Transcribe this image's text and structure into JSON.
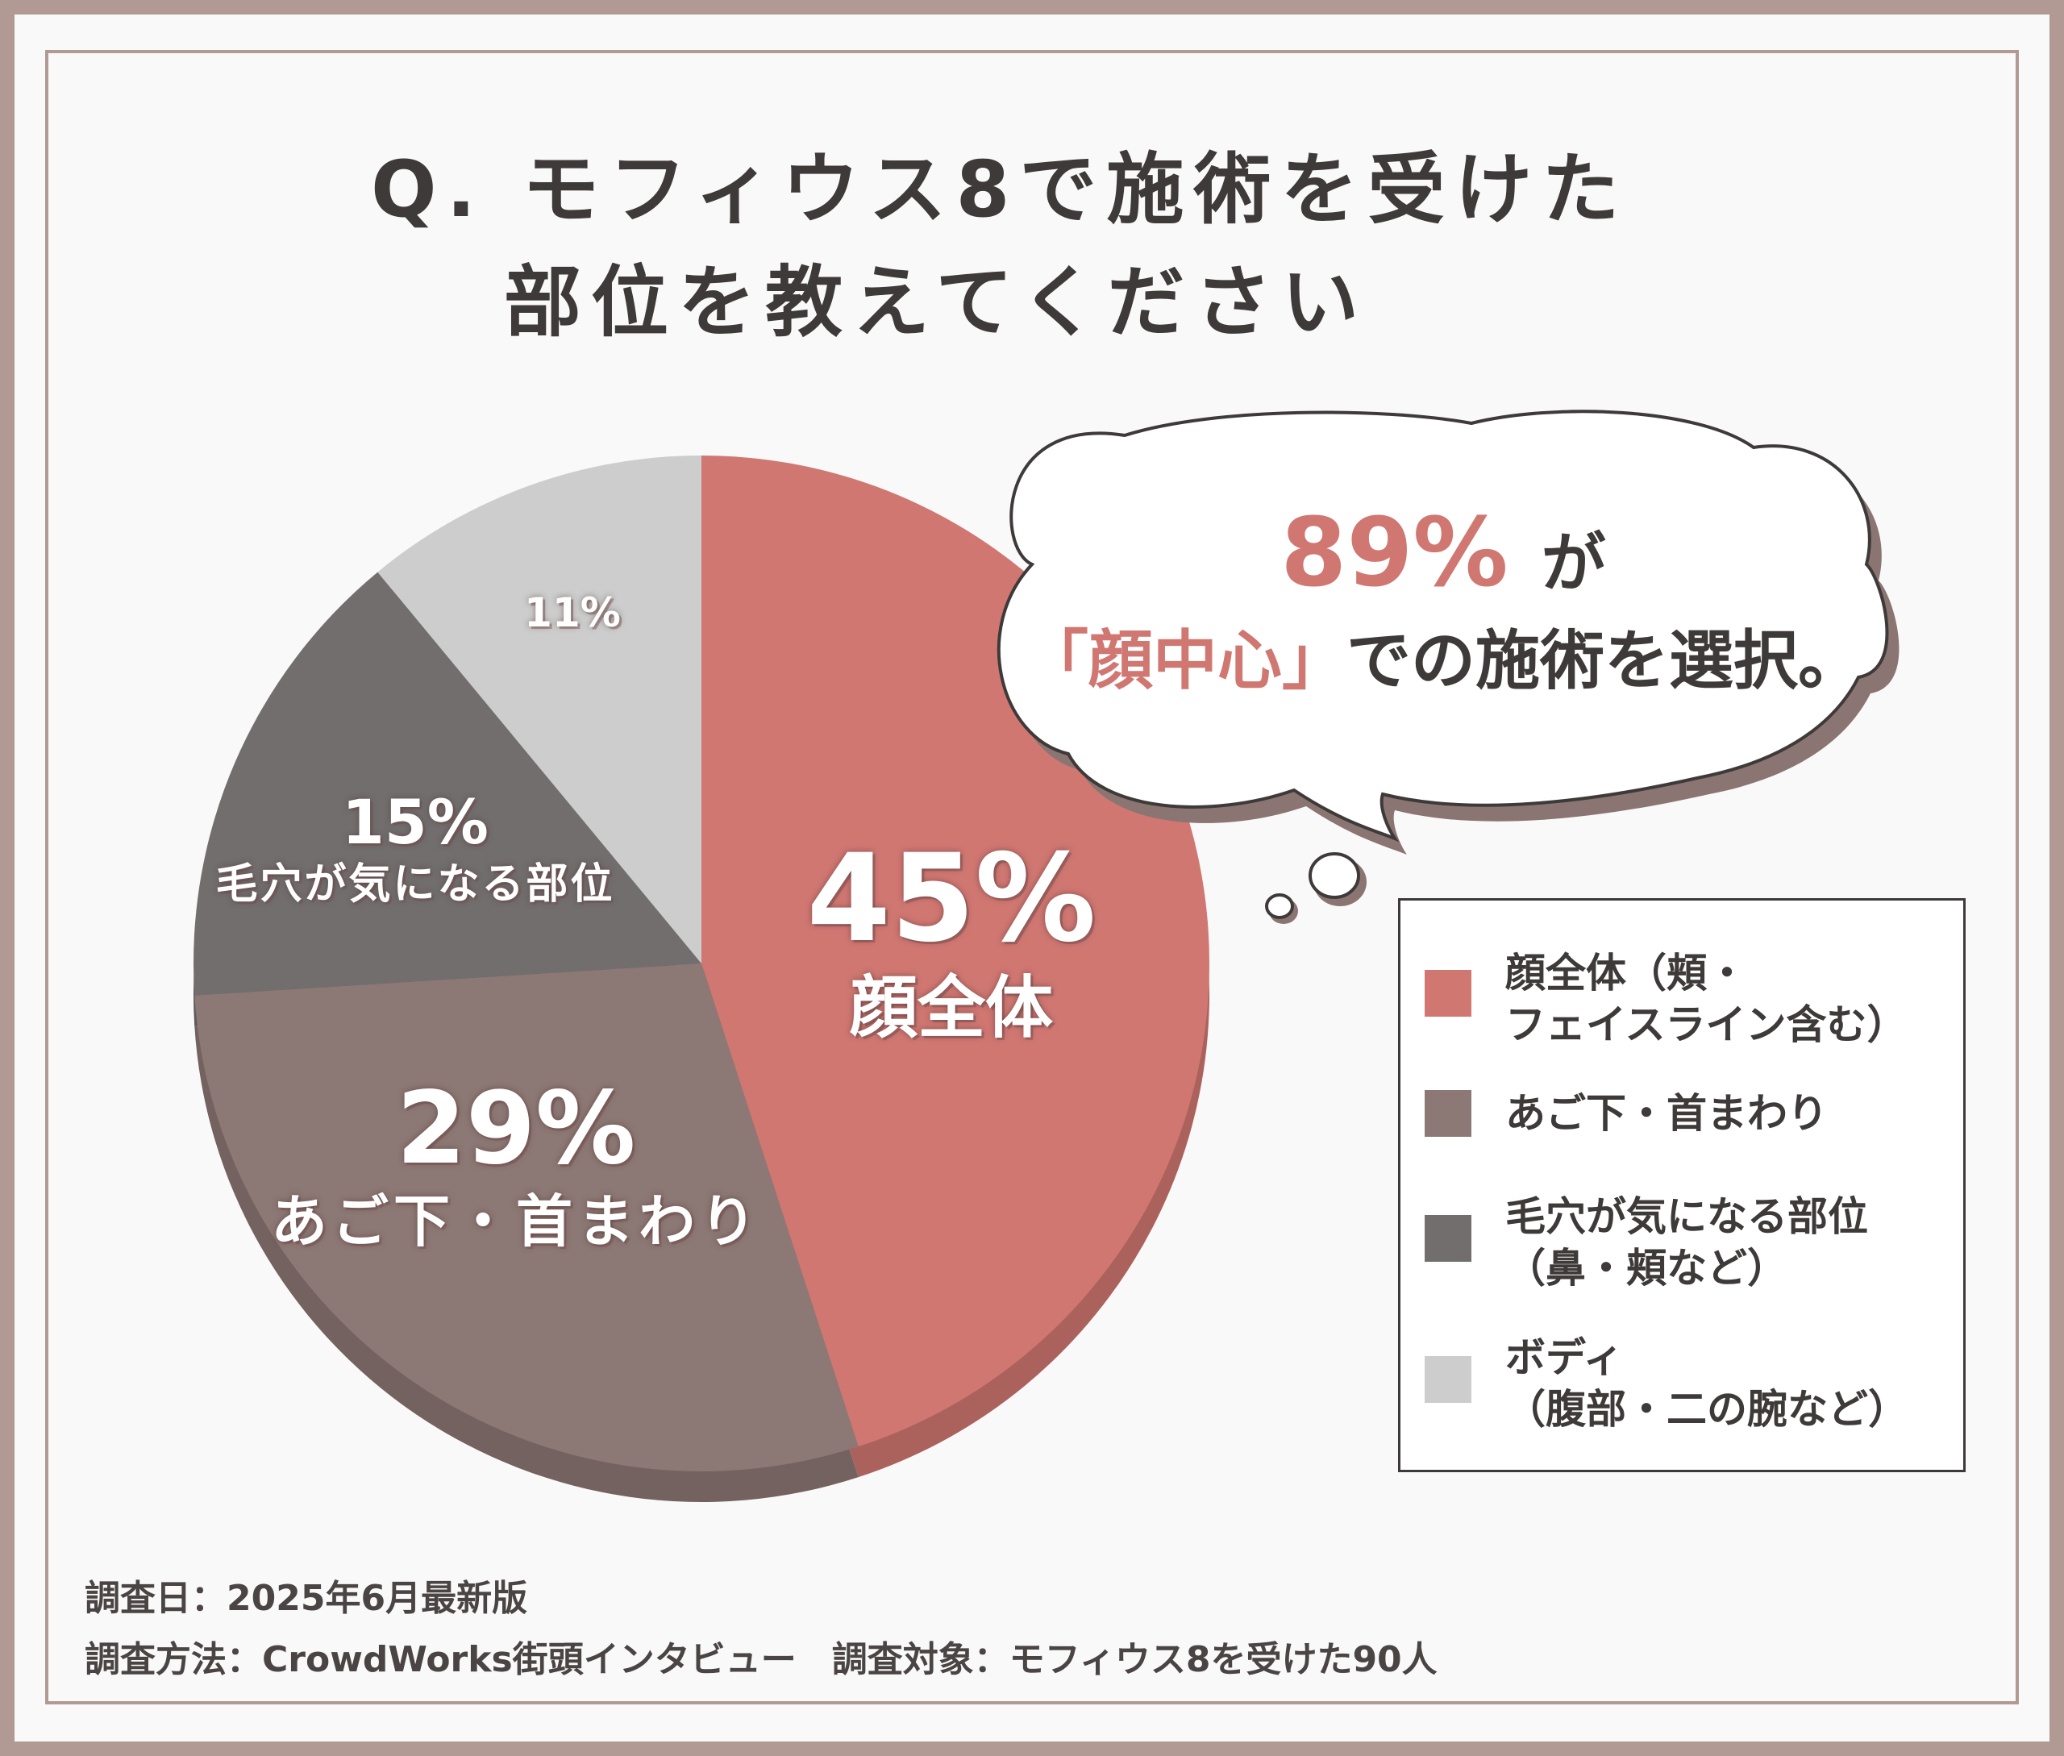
{
  "title": {
    "line1": "Q. モフィウス8で施術を受けた",
    "line2": "部位を教えてください"
  },
  "callout": {
    "percent": "89%",
    "particle": "が",
    "highlight": "「顔中心」",
    "rest": "での施術を選択。"
  },
  "chart_data": {
    "type": "pie",
    "slices": [
      {
        "label": "顔全体",
        "legend": "顔全体（頬・フェイスライン含む）",
        "legend_lines": [
          "顔全体（頬・",
          "フェイスライン含む）"
        ],
        "value": 45,
        "display": "45%",
        "color": "#d07772"
      },
      {
        "label": "あご下・首まわり",
        "legend": "あご下・首まわり",
        "legend_lines": [
          "あご下・首まわり"
        ],
        "value": 29,
        "display": "29%",
        "color": "#8c7874"
      },
      {
        "label": "毛穴が気になる部位",
        "legend": "毛穴が気になる部位（鼻・頬など）",
        "legend_lines": [
          "毛穴が気になる部位",
          "（鼻・頬など）"
        ],
        "value": 15,
        "display": "15%",
        "color": "#726e6e"
      },
      {
        "label": "",
        "legend": "ボディ（腹部・二の腕など）",
        "legend_lines": [
          "ボディ",
          "（腹部・二の腕など）"
        ],
        "value": 11,
        "display": "11%",
        "color": "#cdcdcd"
      }
    ]
  },
  "footer": {
    "line1": "調査日：2025年6月最新版",
    "line2": "調査方法：CrowdWorks街頭インタビュー　調査対象：モフィウス8を受けた90人"
  }
}
